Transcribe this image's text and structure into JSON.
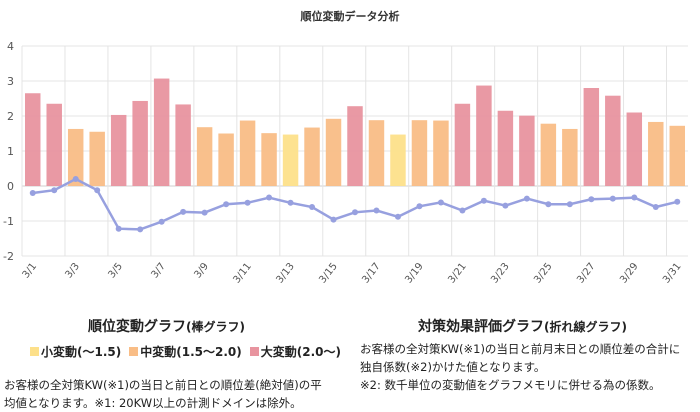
{
  "title": "順位変動データ分析",
  "colors": {
    "small": "#fde08a",
    "medium": "#f9bd86",
    "large": "#e8949f",
    "line": "#97a0df",
    "grid": "#e4e4e4"
  },
  "chart_data": {
    "type": "bar",
    "title": "順位変動データ分析",
    "xlabel": "",
    "ylabel": "",
    "ylim": [
      -2,
      4
    ],
    "yticks": [
      -2,
      -1,
      0,
      1,
      2,
      3,
      4
    ],
    "grid": true,
    "categories": [
      "3/1",
      "3/2",
      "3/3",
      "3/4",
      "3/5",
      "3/6",
      "3/7",
      "3/8",
      "3/9",
      "3/10",
      "3/11",
      "3/12",
      "3/13",
      "3/14",
      "3/15",
      "3/16",
      "3/17",
      "3/18",
      "3/19",
      "3/20",
      "3/21",
      "3/22",
      "3/23",
      "3/24",
      "3/25",
      "3/26",
      "3/27",
      "3/28",
      "3/29",
      "3/30",
      "3/31"
    ],
    "x_tick_labels": [
      "3/1",
      "3/3",
      "3/5",
      "3/7",
      "3/9",
      "3/11",
      "3/13",
      "3/15",
      "3/17",
      "3/19",
      "3/21",
      "3/23",
      "3/25",
      "3/27",
      "3/29",
      "3/31"
    ],
    "series": [
      {
        "type": "bar",
        "values": [
          2.65,
          2.35,
          1.63,
          1.55,
          2.03,
          2.43,
          3.07,
          2.33,
          1.68,
          1.5,
          1.87,
          1.51,
          1.47,
          1.67,
          1.92,
          2.28,
          1.88,
          1.47,
          1.88,
          1.87,
          2.35,
          2.87,
          2.15,
          2.01,
          1.78,
          1.63,
          2.8,
          2.58,
          2.1,
          1.83,
          1.72
        ]
      },
      {
        "type": "line",
        "values": [
          -0.2,
          -0.12,
          0.2,
          -0.12,
          -1.22,
          -1.24,
          -1.02,
          -0.74,
          -0.76,
          -0.52,
          -0.48,
          -0.33,
          -0.48,
          -0.6,
          -0.96,
          -0.75,
          -0.7,
          -0.88,
          -0.58,
          -0.47,
          -0.7,
          -0.42,
          -0.56,
          -0.36,
          -0.52,
          -0.52,
          -0.38,
          -0.36,
          -0.33,
          -0.6,
          -0.45
        ]
      }
    ]
  },
  "left_section": {
    "title": "順位変動グラフ",
    "subtitle": "(棒グラフ)",
    "legend": [
      {
        "label": "小変動(〜1.5)",
        "color_key": "small"
      },
      {
        "label": "中変動(1.5〜2.0)",
        "color_key": "medium"
      },
      {
        "label": "大変動(2.0〜)",
        "color_key": "large"
      }
    ],
    "note_line1": "お客様の全対策KW(※1)の当日と前日との順位差(絶対値)の平",
    "note_line2": "均値となります。※1: 20KW以上の計測ドメインは除外。"
  },
  "right_section": {
    "title": "対策効果評価グラフ",
    "subtitle": "(折れ線グラフ)",
    "note_line1": "お客様の全対策KW(※1)の当日と前月末日との順位差の合計に",
    "note_line2": "独自係数(※2)かけた値となります。",
    "note_line3": "※2: 数千単位の変動値をグラフメモリに併せる為の係数。"
  }
}
